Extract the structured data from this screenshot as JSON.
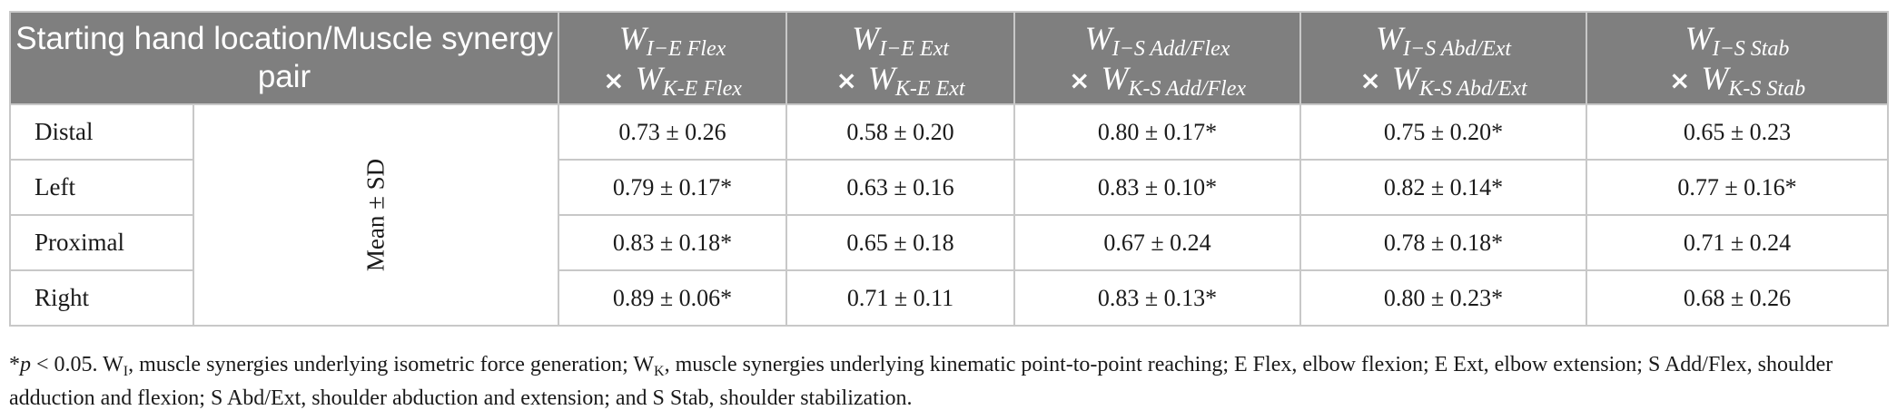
{
  "table": {
    "title": "Starting hand location/Muscle synergy pair",
    "merged_label": "Mean ± SD",
    "columns": [
      {
        "a_letter": "W",
        "a_sub": "I−E Flex",
        "times": "×",
        "b_letter": "W",
        "b_sub": "K-E Flex"
      },
      {
        "a_letter": "W",
        "a_sub": "I−E Ext",
        "times": "×",
        "b_letter": "W",
        "b_sub": "K-E Ext"
      },
      {
        "a_letter": "W",
        "a_sub": "I−S Add/Flex",
        "times": "×",
        "b_letter": "W",
        "b_sub": "K-S Add/Flex"
      },
      {
        "a_letter": "W",
        "a_sub": "I−S Abd/Ext",
        "times": "×",
        "b_letter": "W",
        "b_sub": "K-S Abd/Ext"
      },
      {
        "a_letter": "W",
        "a_sub": "I−S Stab",
        "times": "×",
        "b_letter": "W",
        "b_sub": "K-S Stab"
      }
    ],
    "rows": [
      {
        "location": "Distal",
        "values": [
          "0.73 ± 0.26",
          "0.58 ± 0.20",
          "0.80 ± 0.17*",
          "0.75 ± 0.20*",
          "0.65 ± 0.23"
        ]
      },
      {
        "location": "Left",
        "values": [
          "0.79 ± 0.17*",
          "0.63 ± 0.16",
          "0.83 ± 0.10*",
          "0.82 ± 0.14*",
          "0.77 ± 0.16*"
        ]
      },
      {
        "location": "Proximal",
        "values": [
          "0.83 ± 0.18*",
          "0.65 ± 0.18",
          "0.67 ± 0.24",
          "0.78 ± 0.18*",
          "0.71 ± 0.24"
        ]
      },
      {
        "location": "Right",
        "values": [
          "0.89 ± 0.06*",
          "0.71 ± 0.11",
          "0.83 ± 0.13*",
          "0.80 ± 0.23*",
          "0.68 ± 0.26"
        ]
      }
    ]
  },
  "footnote": {
    "star": "*",
    "p_italic": "p",
    "threshold": " < 0.05. W",
    "wi_sub": "I",
    "wi_text": ", muscle synergies underlying isometric force generation; W",
    "wk_sub": "K",
    "rest": ", muscle synergies underlying kinematic point-to-point reaching; E Flex, elbow flexion; E Ext, elbow extension; S Add/Flex, shoulder adduction and flexion; S Abd/Ext, shoulder abduction and extension; and S Stab, shoulder stabilization."
  }
}
